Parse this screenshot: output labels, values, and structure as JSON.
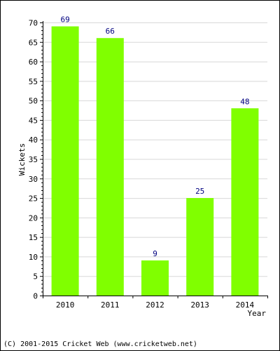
{
  "chart_data": {
    "type": "bar",
    "categories": [
      "2010",
      "2011",
      "2012",
      "2013",
      "2014"
    ],
    "values": [
      69,
      66,
      9,
      25,
      48
    ],
    "data_labels": [
      "69",
      "66",
      "9",
      "25",
      "48"
    ],
    "xlabel": "Year",
    "ylabel": "Wickets",
    "ylim": [
      0,
      70
    ],
    "yticks": [
      0,
      5,
      10,
      15,
      20,
      25,
      30,
      35,
      40,
      45,
      50,
      55,
      60,
      65,
      70
    ],
    "grid": true,
    "legend": "none"
  },
  "colors": {
    "bar": "#80ff00",
    "value_label": "#000080",
    "grid": "#d8d8d8",
    "axis": "#000000"
  },
  "footer": {
    "copyright": "(C) 2001-2015 Cricket Web (www.cricketweb.net)"
  }
}
